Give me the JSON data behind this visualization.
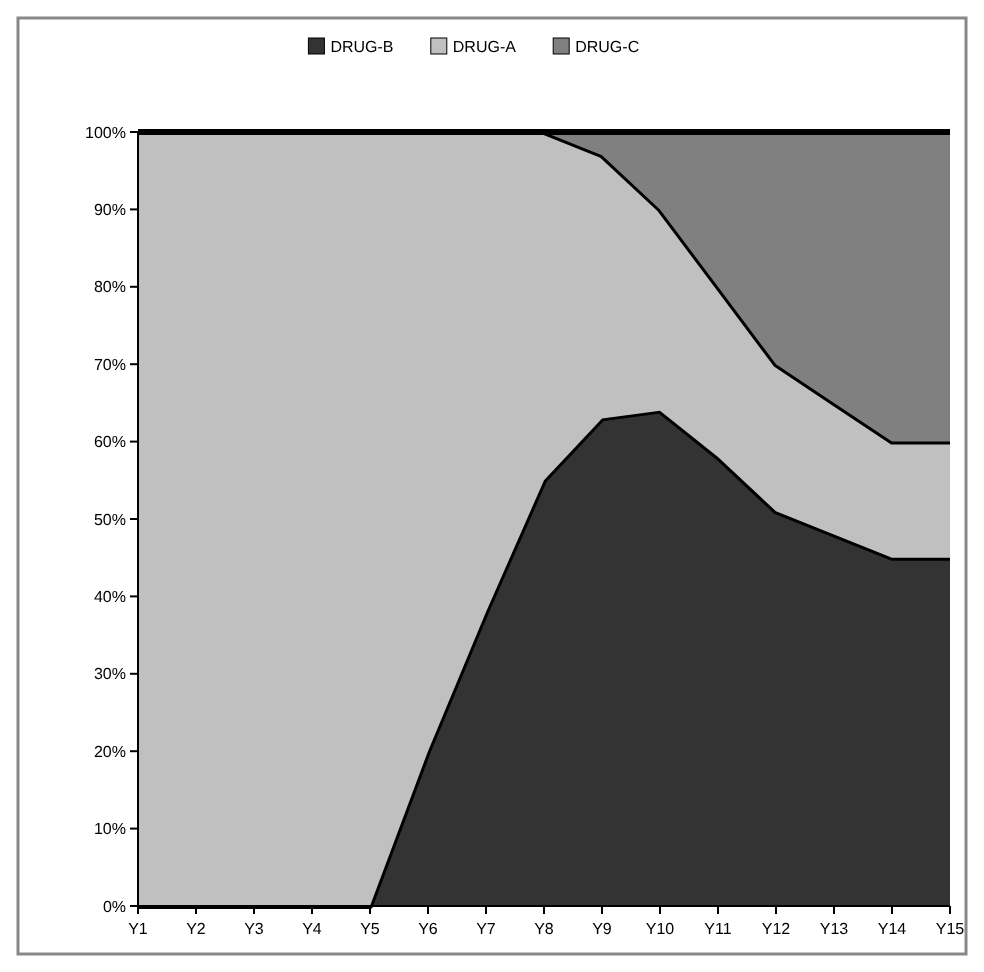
{
  "chart_data": {
    "type": "area",
    "stacked": true,
    "categories": [
      "Y1",
      "Y2",
      "Y3",
      "Y4",
      "Y5",
      "Y6",
      "Y7",
      "Y8",
      "Y9",
      "Y10",
      "Y11",
      "Y12",
      "Y13",
      "Y14",
      "Y15"
    ],
    "series": [
      {
        "name": "DRUG-B",
        "color": "#333333",
        "values": [
          0,
          0,
          0,
          0,
          0,
          20,
          38,
          55,
          63,
          64,
          58,
          51,
          48,
          45,
          45
        ]
      },
      {
        "name": "DRUG-A",
        "color": "#c0c0c0",
        "values": [
          100,
          100,
          100,
          100,
          100,
          80,
          62,
          45,
          34,
          26,
          22,
          19,
          17,
          15,
          15
        ]
      },
      {
        "name": "DRUG-C",
        "color": "#808080",
        "values": [
          0,
          0,
          0,
          0,
          0,
          0,
          0,
          0,
          3,
          10,
          20,
          30,
          35,
          40,
          40
        ]
      }
    ],
    "ylim": [
      0,
      100
    ],
    "yticks": [
      {
        "value": 0,
        "label": "0%"
      },
      {
        "value": 10,
        "label": "10%"
      },
      {
        "value": 20,
        "label": "20%"
      },
      {
        "value": 30,
        "label": "30%"
      },
      {
        "value": 40,
        "label": "40%"
      },
      {
        "value": 50,
        "label": "50%"
      },
      {
        "value": 60,
        "label": "60%"
      },
      {
        "value": 70,
        "label": "70%"
      },
      {
        "value": 80,
        "label": "80%"
      },
      {
        "value": 90,
        "label": "90%"
      },
      {
        "value": 100,
        "label": "100%"
      }
    ],
    "legend": "top"
  }
}
